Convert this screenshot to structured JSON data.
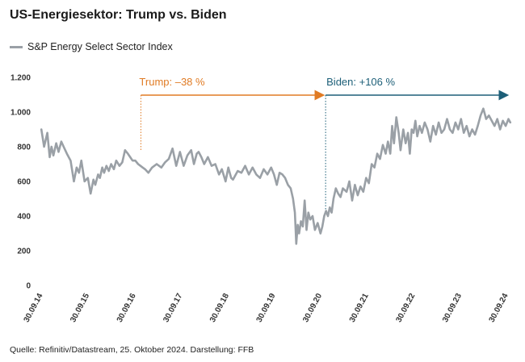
{
  "title": "US-Energiesektor: Trump vs. Biden",
  "legend": {
    "label": "S&P Energy Select Sector Index",
    "color": "#9aa0a6"
  },
  "source": "Quelle: Refinitiv/Datastream, 25. Oktober 2024. Darstellung: FFB",
  "annotations": {
    "trump": {
      "label": "Trump: –38 %",
      "color": "#e07b24"
    },
    "biden": {
      "label": "Biden: +106 %",
      "color": "#1d5f78"
    }
  },
  "chart_data": {
    "type": "line",
    "title": "US-Energiesektor: Trump vs. Biden",
    "xlabel": "",
    "ylabel": "",
    "ylim": [
      0,
      1200
    ],
    "xlim": [
      2014.7,
      2024.82
    ],
    "yticks": [
      0,
      200,
      400,
      600,
      800,
      1000,
      1200
    ],
    "ytick_labels": [
      "0",
      "200",
      "400",
      "600",
      "800",
      "1.000",
      "1.200"
    ],
    "xtick_labels": [
      "30.09.14",
      "30.09.15",
      "30.09.16",
      "30.09.17",
      "30.09.18",
      "30.09.19",
      "30.09.20",
      "30.09.21",
      "30.09.22",
      "30.09.23",
      "30.09.24"
    ],
    "xtick_positions": [
      2014.75,
      2015.75,
      2016.75,
      2017.75,
      2018.75,
      2019.75,
      2020.75,
      2021.75,
      2022.75,
      2023.75,
      2024.75
    ],
    "periods": [
      {
        "name": "Trump",
        "start": 2016.86,
        "end": 2020.83,
        "change": "-38 %"
      },
      {
        "name": "Biden",
        "start": 2020.83,
        "end": 2024.82,
        "change": "+106 %"
      }
    ],
    "series": [
      {
        "name": "S&P Energy Select Sector Index",
        "color": "#9aa0a6",
        "x": [
          2014.72,
          2014.78,
          2014.85,
          2014.9,
          2014.94,
          2014.98,
          2015.04,
          2015.09,
          2015.15,
          2015.2,
          2015.27,
          2015.35,
          2015.42,
          2015.48,
          2015.53,
          2015.58,
          2015.65,
          2015.72,
          2015.78,
          2015.84,
          2015.88,
          2015.94,
          2015.98,
          2016.03,
          2016.07,
          2016.12,
          2016.17,
          2016.22,
          2016.28,
          2016.33,
          2016.4,
          2016.46,
          2016.52,
          2016.58,
          2016.63,
          2016.68,
          2016.74,
          2016.8,
          2016.85,
          2016.9,
          2016.95,
          2017.02,
          2017.1,
          2017.2,
          2017.3,
          2017.38,
          2017.46,
          2017.54,
          2017.62,
          2017.7,
          2017.78,
          2017.86,
          2017.94,
          2018.0,
          2018.06,
          2018.1,
          2018.16,
          2018.22,
          2018.3,
          2018.38,
          2018.46,
          2018.54,
          2018.6,
          2018.68,
          2018.74,
          2018.8,
          2018.84,
          2018.88,
          2018.94,
          2019.02,
          2019.1,
          2019.18,
          2019.26,
          2019.34,
          2019.42,
          2019.5,
          2019.58,
          2019.66,
          2019.72,
          2019.78,
          2019.84,
          2019.9,
          2019.96,
          2020.02,
          2020.08,
          2020.13,
          2020.17,
          2020.2,
          2020.23,
          2020.26,
          2020.3,
          2020.34,
          2020.38,
          2020.42,
          2020.46,
          2020.5,
          2020.55,
          2020.6,
          2020.66,
          2020.72,
          2020.76,
          2020.8,
          2020.84,
          2020.88,
          2020.92,
          2020.96,
          2021.0,
          2021.05,
          2021.1,
          2021.15,
          2021.2,
          2021.28,
          2021.34,
          2021.4,
          2021.46,
          2021.52,
          2021.58,
          2021.64,
          2021.7,
          2021.76,
          2021.82,
          2021.88,
          2021.94,
          2022.0,
          2022.06,
          2022.12,
          2022.17,
          2022.22,
          2022.26,
          2022.3,
          2022.35,
          2022.4,
          2022.44,
          2022.5,
          2022.55,
          2022.6,
          2022.64,
          2022.68,
          2022.72,
          2022.76,
          2022.8,
          2022.85,
          2022.9,
          2022.96,
          2023.02,
          2023.08,
          2023.14,
          2023.2,
          2023.26,
          2023.32,
          2023.38,
          2023.44,
          2023.5,
          2023.56,
          2023.62,
          2023.68,
          2023.74,
          2023.8,
          2023.86,
          2023.92,
          2023.98,
          2024.04,
          2024.1,
          2024.16,
          2024.22,
          2024.28,
          2024.34,
          2024.4,
          2024.46,
          2024.52,
          2024.58,
          2024.64,
          2024.7,
          2024.76,
          2024.8
        ],
        "y": [
          900,
          800,
          880,
          740,
          800,
          750,
          820,
          770,
          830,
          800,
          760,
          720,
          600,
          680,
          650,
          720,
          600,
          620,
          530,
          610,
          580,
          640,
          620,
          680,
          650,
          690,
          660,
          700,
          670,
          720,
          690,
          710,
          780,
          760,
          740,
          720,
          720,
          700,
          690,
          680,
          670,
          650,
          680,
          700,
          680,
          710,
          730,
          790,
          690,
          770,
          690,
          750,
          780,
          700,
          760,
          770,
          740,
          700,
          740,
          690,
          700,
          640,
          670,
          600,
          680,
          620,
          610,
          630,
          660,
          650,
          690,
          640,
          680,
          640,
          620,
          670,
          640,
          680,
          640,
          580,
          650,
          640,
          620,
          580,
          560,
          500,
          420,
          240,
          350,
          300,
          370,
          340,
          490,
          320,
          420,
          380,
          400,
          320,
          360,
          300,
          340,
          400,
          430,
          400,
          450,
          420,
          500,
          560,
          530,
          510,
          560,
          540,
          600,
          490,
          580,
          520,
          570,
          540,
          620,
          590,
          700,
          680,
          760,
          730,
          810,
          760,
          830,
          760,
          920,
          820,
          970,
          880,
          780,
          900,
          820,
          880,
          760,
          900,
          880,
          950,
          860,
          920,
          880,
          940,
          900,
          830,
          920,
          870,
          940,
          880,
          900,
          960,
          900,
          880,
          940,
          900,
          960,
          880,
          920,
          860,
          900,
          870,
          920,
          980,
          1020,
          960,
          980,
          950,
          920,
          960,
          900,
          950,
          920,
          960,
          940
        ]
      }
    ]
  }
}
